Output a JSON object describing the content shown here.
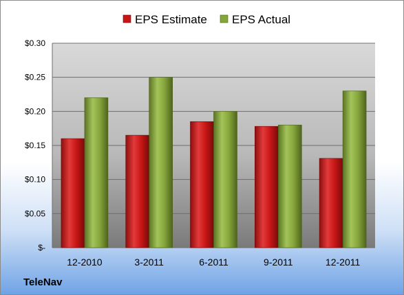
{
  "company_label": "TeleNav",
  "chart_data": {
    "type": "bar",
    "categories": [
      "12-2010",
      "3-2011",
      "6-2011",
      "9-2011",
      "12-2011"
    ],
    "series": [
      {
        "name": "EPS Estimate",
        "values": [
          0.16,
          0.165,
          0.185,
          0.178,
          0.131
        ],
        "color": "#d81e1e"
      },
      {
        "name": "EPS Actual",
        "values": [
          0.22,
          0.25,
          0.2,
          0.18,
          0.23
        ],
        "color": "#8aab3f"
      }
    ],
    "yticks": [
      "$-",
      "$0.05",
      "$0.10",
      "$0.15",
      "$0.20",
      "$0.25",
      "$0.30"
    ],
    "ylim": [
      0,
      0.3
    ],
    "grid": true,
    "legend_position": "top",
    "title": "",
    "xlabel": "",
    "ylabel": ""
  }
}
